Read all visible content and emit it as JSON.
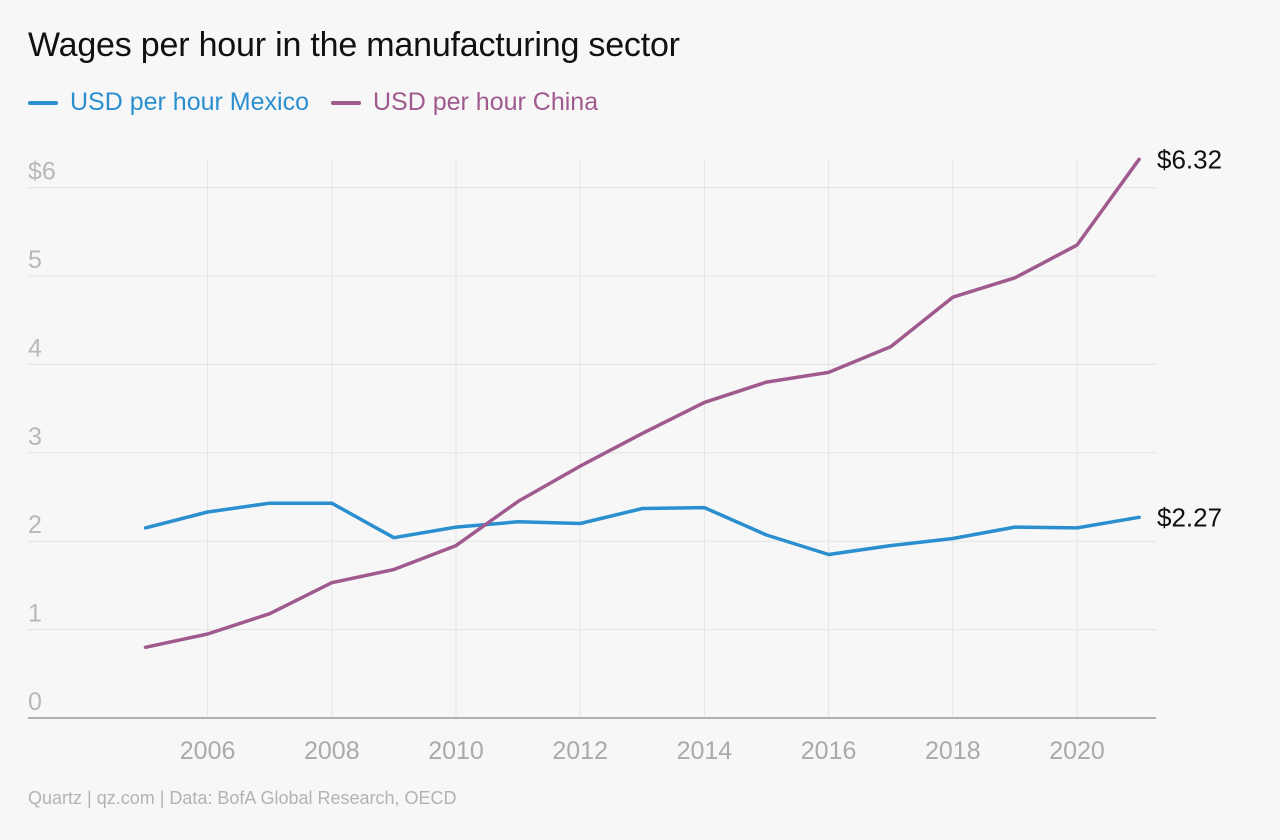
{
  "chart_data": {
    "type": "line",
    "title": "Wages per hour in the manufacturing sector",
    "x": [
      2005,
      2006,
      2007,
      2008,
      2009,
      2010,
      2011,
      2012,
      2013,
      2014,
      2015,
      2016,
      2017,
      2018,
      2019,
      2020,
      2021
    ],
    "series": [
      {
        "name": "USD per hour Mexico",
        "color": "#2b8fcf",
        "values": [
          2.15,
          2.33,
          2.43,
          2.43,
          2.04,
          2.16,
          2.22,
          2.2,
          2.37,
          2.38,
          2.07,
          1.85,
          1.95,
          2.03,
          2.16,
          2.15,
          2.27
        ],
        "end_label": "$2.27"
      },
      {
        "name": "USD per hour China",
        "color": "#a05a8e",
        "values": [
          0.8,
          0.95,
          1.18,
          1.53,
          1.68,
          1.95,
          2.45,
          2.85,
          3.22,
          3.57,
          3.8,
          3.91,
          4.2,
          4.76,
          4.98,
          5.35,
          6.32
        ],
        "end_label": "$6.32"
      }
    ],
    "xticks": [
      2006,
      2008,
      2010,
      2012,
      2014,
      2016,
      2018,
      2020
    ],
    "xtick_labels": [
      "2006",
      "2008",
      "2010",
      "2012",
      "2014",
      "2016",
      "2018",
      "2020"
    ],
    "yticks": [
      0,
      1,
      2,
      3,
      4,
      5,
      6
    ],
    "ytick_labels": [
      "0",
      "1",
      "2",
      "3",
      "4",
      "5",
      "$6"
    ],
    "ylim": [
      0,
      6.32
    ],
    "xlim": [
      2005,
      2021
    ],
    "grid": true,
    "legend_position": "top-left"
  },
  "source": "Quartz | qz.com | Data: BofA Global Research, OECD"
}
